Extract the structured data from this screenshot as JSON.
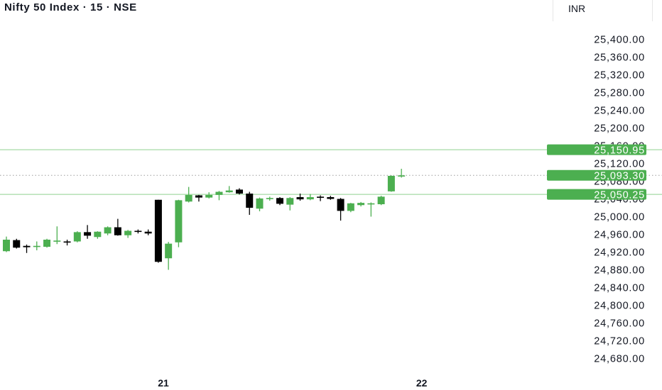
{
  "header": {
    "title": "Nifty 50 Index · 15 · NSE",
    "currency": "INR"
  },
  "colors": {
    "up": "#4caf50",
    "down": "#000000",
    "level_line": "#8fd18f",
    "current_line": "#9e9e9e",
    "tag_bg": "#4caf50",
    "text": "#131722"
  },
  "chart_data": {
    "type": "candlestick",
    "y_axis": {
      "min": 24660,
      "max": 25420,
      "ticks": [
        25400,
        25360,
        25320,
        25280,
        25240,
        25200,
        25160,
        25120,
        25080,
        25040,
        25000,
        24960,
        24920,
        24880,
        24840,
        24800,
        24760,
        24720,
        24680
      ],
      "tick_labels": [
        "25,400.00",
        "25,360.00",
        "25,320.00",
        "25,280.00",
        "25,240.00",
        "25,200.00",
        "25,160.00",
        "25,120.00",
        "25,080.00",
        "25,040.00",
        "25,000.00",
        "24,960.00",
        "24,920.00",
        "24,880.00",
        "24,840.00",
        "24,800.00",
        "24,760.00",
        "24,720.00",
        "24,680.00"
      ]
    },
    "x_axis": {
      "labels": [
        {
          "text": "21",
          "index": 15.5
        },
        {
          "text": "22",
          "index": 41
        }
      ]
    },
    "horizontal_levels": [
      {
        "value": 25150.95,
        "label": "25,150.95",
        "style": "solid"
      },
      {
        "value": 25093.3,
        "label": "25,093.30",
        "style": "dotted"
      },
      {
        "value": 25050.25,
        "label": "25,050.25",
        "style": "solid"
      }
    ],
    "candles": [
      {
        "o": 24922,
        "h": 24955,
        "l": 24920,
        "c": 24948
      },
      {
        "o": 24947,
        "h": 24950,
        "l": 24928,
        "c": 24930
      },
      {
        "o": 24934,
        "h": 24937,
        "l": 24918,
        "c": 24931
      },
      {
        "o": 24934,
        "h": 24944,
        "l": 24924,
        "c": 24934
      },
      {
        "o": 24932,
        "h": 24950,
        "l": 24930,
        "c": 24948
      },
      {
        "o": 24946,
        "h": 24978,
        "l": 24938,
        "c": 24946
      },
      {
        "o": 24944,
        "h": 24948,
        "l": 24935,
        "c": 24942
      },
      {
        "o": 24944,
        "h": 24967,
        "l": 24942,
        "c": 24965
      },
      {
        "o": 24965,
        "h": 24981,
        "l": 24950,
        "c": 24957
      },
      {
        "o": 24954,
        "h": 24967,
        "l": 24950,
        "c": 24966
      },
      {
        "o": 24962,
        "h": 24978,
        "l": 24958,
        "c": 24976
      },
      {
        "o": 24976,
        "h": 24995,
        "l": 24957,
        "c": 24958
      },
      {
        "o": 24958,
        "h": 24970,
        "l": 24952,
        "c": 24968
      },
      {
        "o": 24968,
        "h": 24971,
        "l": 24962,
        "c": 24966
      },
      {
        "o": 24966,
        "h": 24971,
        "l": 24958,
        "c": 24962
      },
      {
        "o": 25038,
        "h": 25038,
        "l": 24896,
        "c": 24898
      },
      {
        "o": 24906,
        "h": 24943,
        "l": 24880,
        "c": 24939
      },
      {
        "o": 24942,
        "h": 25038,
        "l": 24931,
        "c": 25037
      },
      {
        "o": 25034,
        "h": 25067,
        "l": 25032,
        "c": 25049
      },
      {
        "o": 25048,
        "h": 25049,
        "l": 25034,
        "c": 25043
      },
      {
        "o": 25043,
        "h": 25055,
        "l": 25041,
        "c": 25049
      },
      {
        "o": 25049,
        "h": 25058,
        "l": 25037,
        "c": 25056
      },
      {
        "o": 25055,
        "h": 25069,
        "l": 25054,
        "c": 25059
      },
      {
        "o": 25061,
        "h": 25064,
        "l": 25050,
        "c": 25052
      },
      {
        "o": 25052,
        "h": 25056,
        "l": 25004,
        "c": 25020
      },
      {
        "o": 25018,
        "h": 25043,
        "l": 25012,
        "c": 25041
      },
      {
        "o": 25041,
        "h": 25045,
        "l": 25036,
        "c": 25042
      },
      {
        "o": 25042,
        "h": 25044,
        "l": 25026,
        "c": 25029
      },
      {
        "o": 25027,
        "h": 25044,
        "l": 25014,
        "c": 25042
      },
      {
        "o": 25044,
        "h": 25052,
        "l": 25036,
        "c": 25039
      },
      {
        "o": 25039,
        "h": 25051,
        "l": 25037,
        "c": 25044
      },
      {
        "o": 25045,
        "h": 25048,
        "l": 25035,
        "c": 25043
      },
      {
        "o": 25044,
        "h": 25047,
        "l": 25038,
        "c": 25040
      },
      {
        "o": 25040,
        "h": 25042,
        "l": 24991,
        "c": 25013
      },
      {
        "o": 25013,
        "h": 25031,
        "l": 25010,
        "c": 25030
      },
      {
        "o": 25026,
        "h": 25033,
        "l": 25023,
        "c": 25031
      },
      {
        "o": 25030,
        "h": 25032,
        "l": 25000,
        "c": 25030
      },
      {
        "o": 25028,
        "h": 25047,
        "l": 25026,
        "c": 25045
      },
      {
        "o": 25057,
        "h": 25093,
        "l": 25056,
        "c": 25092
      },
      {
        "o": 25093,
        "h": 25108,
        "l": 25088,
        "c": 25093
      }
    ]
  }
}
